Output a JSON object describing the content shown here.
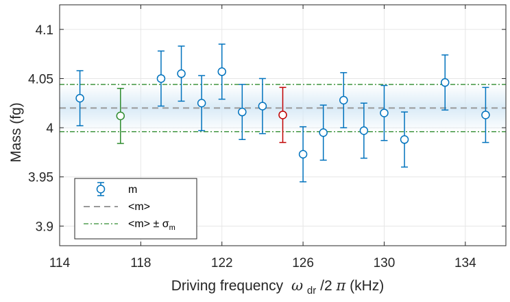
{
  "chart_data": {
    "type": "scatter",
    "xlabel": {
      "prefix": "Driving frequency",
      "omega": "ω",
      "sub": "dr",
      "suffix": " /2",
      "pi": "π",
      "units": " (kHz)"
    },
    "ylabel": "Mass (fg)",
    "xlim": [
      114,
      136
    ],
    "ylim": [
      3.88,
      4.125
    ],
    "xticks": [
      "114",
      "118",
      "122",
      "126",
      "130",
      "134"
    ],
    "xtick_values": [
      114,
      118,
      122,
      126,
      130,
      134
    ],
    "yticks": [
      "3.9",
      "3.95",
      "4",
      "4.05",
      "4.1"
    ],
    "ytick_values": [
      3.9,
      3.95,
      4.0,
      4.05,
      4.1
    ],
    "grid": true,
    "points": [
      {
        "x": 115,
        "y": 4.03,
        "err": 0.028,
        "color": "#0072BD"
      },
      {
        "x": 117,
        "y": 4.012,
        "err": 0.028,
        "color": "#2E8B2E"
      },
      {
        "x": 119,
        "y": 4.05,
        "err": 0.028,
        "color": "#0072BD"
      },
      {
        "x": 120,
        "y": 4.055,
        "err": 0.028,
        "color": "#0072BD"
      },
      {
        "x": 121,
        "y": 4.025,
        "err": 0.028,
        "color": "#0072BD"
      },
      {
        "x": 122,
        "y": 4.057,
        "err": 0.028,
        "color": "#0072BD"
      },
      {
        "x": 123,
        "y": 4.016,
        "err": 0.028,
        "color": "#0072BD"
      },
      {
        "x": 124,
        "y": 4.022,
        "err": 0.028,
        "color": "#0072BD"
      },
      {
        "x": 125,
        "y": 4.013,
        "err": 0.028,
        "color": "#C00000"
      },
      {
        "x": 126,
        "y": 3.973,
        "err": 0.028,
        "color": "#0072BD"
      },
      {
        "x": 127,
        "y": 3.995,
        "err": 0.028,
        "color": "#0072BD"
      },
      {
        "x": 128,
        "y": 4.028,
        "err": 0.028,
        "color": "#0072BD"
      },
      {
        "x": 129,
        "y": 3.997,
        "err": 0.028,
        "color": "#0072BD"
      },
      {
        "x": 130,
        "y": 4.015,
        "err": 0.028,
        "color": "#0072BD"
      },
      {
        "x": 131,
        "y": 3.988,
        "err": 0.028,
        "color": "#0072BD"
      },
      {
        "x": 133,
        "y": 4.046,
        "err": 0.028,
        "color": "#0072BD"
      },
      {
        "x": 135,
        "y": 4.013,
        "err": 0.028,
        "color": "#0072BD"
      }
    ],
    "mean": 4.02,
    "sigma": 0.024,
    "series": [
      {
        "name": "m",
        "color": "#0072BD"
      },
      {
        "name": "mean",
        "color": "#999999"
      },
      {
        "name": "band",
        "color": "#2E8B2E"
      }
    ],
    "legend": {
      "position": "bottom-left",
      "m_label": "m",
      "mean_label": "<m>",
      "band_label": "<m> ± σ",
      "band_sub": "m"
    }
  }
}
